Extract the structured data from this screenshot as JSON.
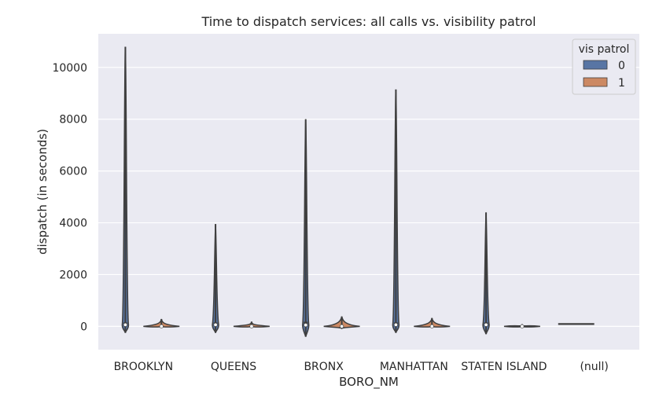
{
  "chart_data": {
    "type": "violin",
    "title": "Time to dispatch services: all calls vs. visibility patrol",
    "xlabel": "BORO_NM",
    "ylabel": "dispatch (in seconds)",
    "categories": [
      "BROOKLYN",
      "QUEENS",
      "BRONX",
      "MANHATTAN",
      "STATEN ISLAND",
      "(null)"
    ],
    "yticks": [
      0,
      2000,
      4000,
      6000,
      8000,
      10000
    ],
    "ylim": [
      -900,
      11300
    ],
    "grid": true,
    "legend": {
      "title": "vis patrol",
      "position": "top-right",
      "entries": [
        {
          "label": "0",
          "color": "#5875a4"
        },
        {
          "label": "1",
          "color": "#cc8963"
        }
      ]
    },
    "series": [
      {
        "name": "0",
        "color": "#5875a4",
        "violins": [
          {
            "category": "BROOKLYN",
            "min": -250,
            "max": 10800,
            "q1": 10,
            "median": 60,
            "q3": 150
          },
          {
            "category": "QUEENS",
            "min": -250,
            "max": 3950,
            "q1": 10,
            "median": 60,
            "q3": 150
          },
          {
            "category": "BRONX",
            "min": -400,
            "max": 8000,
            "q1": 0,
            "median": 50,
            "q3": 180
          },
          {
            "category": "MANHATTAN",
            "min": -250,
            "max": 9150,
            "q1": 10,
            "median": 60,
            "q3": 150
          },
          {
            "category": "STATEN ISLAND",
            "min": -300,
            "max": 4400,
            "q1": 10,
            "median": 60,
            "q3": 150
          },
          {
            "category": "(null)",
            "min": 85,
            "max": 95,
            "q1": 88,
            "median": 90,
            "q3": 92
          }
        ]
      },
      {
        "name": "1",
        "color": "#cc8963",
        "violins": [
          {
            "category": "BROOKLYN",
            "min": -20,
            "max": 280,
            "q1": -5,
            "median": 0,
            "q3": 20
          },
          {
            "category": "QUEENS",
            "min": -20,
            "max": 180,
            "q1": -5,
            "median": 0,
            "q3": 20
          },
          {
            "category": "BRONX",
            "min": -80,
            "max": 380,
            "q1": -10,
            "median": 0,
            "q3": 30
          },
          {
            "category": "MANHATTAN",
            "min": -20,
            "max": 320,
            "q1": -5,
            "median": 0,
            "q3": 20
          },
          {
            "category": "STATEN ISLAND",
            "min": -20,
            "max": 80,
            "q1": -5,
            "median": 0,
            "q3": 15
          }
        ]
      }
    ]
  }
}
